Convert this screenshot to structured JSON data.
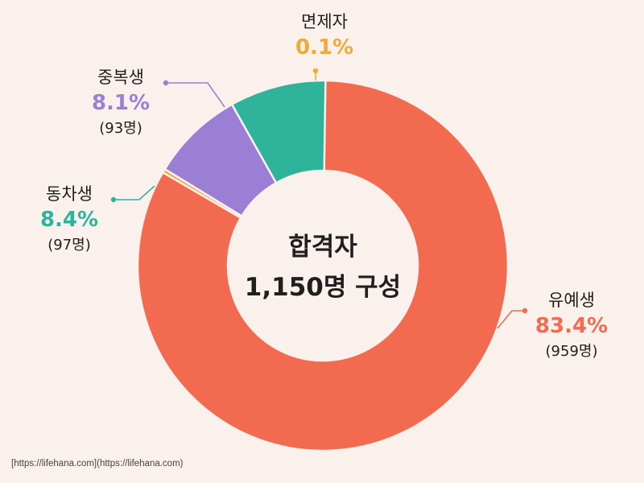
{
  "source_note": "[https://lifehana.com](https://lifehana.com)",
  "chart_data": {
    "type": "pie",
    "style": "donut",
    "center_label": [
      "합격자",
      "1,150명 구성"
    ],
    "slices": [
      {
        "label": "유예생",
        "percent": 83.4,
        "percent_text": "83.4%",
        "count_text": "(959명)",
        "color": "#f26b50"
      },
      {
        "label": "면제자",
        "percent": 0.1,
        "percent_text": "0.1%",
        "count_text": "",
        "color": "#f2a93b"
      },
      {
        "label": "중복생",
        "percent": 8.1,
        "percent_text": "8.1%",
        "count_text": "(93명)",
        "color": "#9b7fd4"
      },
      {
        "label": "동차생",
        "percent": 8.4,
        "percent_text": "8.4%",
        "count_text": "(97명)",
        "color": "#2fb39a"
      }
    ],
    "legend": "none"
  }
}
